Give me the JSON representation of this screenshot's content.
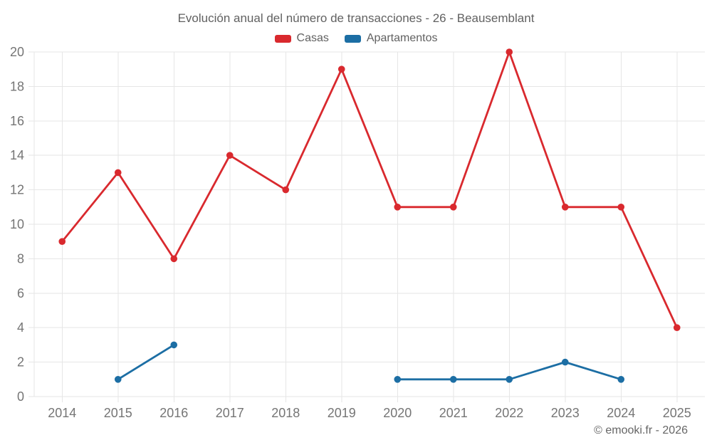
{
  "chart_data": {
    "type": "line",
    "title": "Evolución anual del número de transacciones - 26 - Beausemblant",
    "categories": [
      2014,
      2015,
      2016,
      2017,
      2018,
      2019,
      2020,
      2021,
      2022,
      2023,
      2024,
      2025
    ],
    "series": [
      {
        "name": "Casas",
        "color": "#d9292e",
        "values": [
          9,
          13,
          8,
          14,
          12,
          19,
          11,
          11,
          20,
          11,
          11,
          4
        ]
      },
      {
        "name": "Apartamentos",
        "color": "#1c6ea4",
        "values": [
          null,
          1,
          3,
          null,
          null,
          null,
          1,
          1,
          1,
          2,
          1,
          null
        ]
      }
    ],
    "ylim": [
      0,
      20
    ],
    "yticks": [
      0,
      2,
      4,
      6,
      8,
      10,
      12,
      14,
      16,
      18,
      20
    ],
    "xlabel": "",
    "ylabel": "",
    "grid": true,
    "legend_position": "top"
  },
  "colors": {
    "grid": "#e6e6e6",
    "axis_text": "#757575",
    "title_text": "#616161"
  },
  "watermark": {
    "text": "© emooki.fr - 2026"
  }
}
